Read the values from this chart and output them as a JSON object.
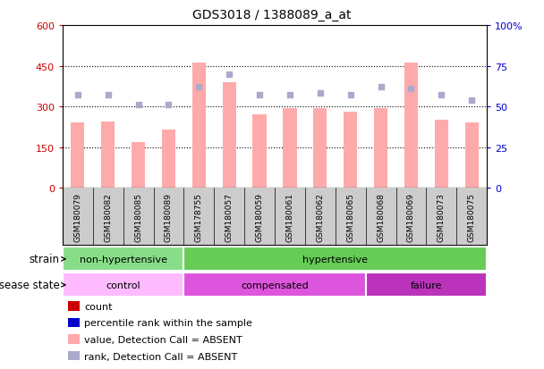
{
  "title": "GDS3018 / 1388089_a_at",
  "samples": [
    "GSM180079",
    "GSM180082",
    "GSM180085",
    "GSM180089",
    "GSM178755",
    "GSM180057",
    "GSM180059",
    "GSM180061",
    "GSM180062",
    "GSM180065",
    "GSM180068",
    "GSM180069",
    "GSM180073",
    "GSM180075"
  ],
  "bar_values": [
    240,
    243,
    170,
    215,
    460,
    390,
    270,
    295,
    295,
    280,
    295,
    460,
    250,
    240
  ],
  "scatter_values": [
    57,
    57,
    51,
    51,
    62,
    70,
    57,
    57,
    58,
    57,
    62,
    61,
    57,
    54
  ],
  "bar_color": "#ffaaaa",
  "scatter_color": "#aaaacc",
  "left_ylim": [
    0,
    600
  ],
  "right_ylim": [
    0,
    100
  ],
  "left_yticks": [
    0,
    150,
    300,
    450,
    600
  ],
  "left_yticklabels": [
    "0",
    "150",
    "300",
    "450",
    "600"
  ],
  "right_yticks": [
    0,
    25,
    50,
    75,
    100
  ],
  "right_yticklabels": [
    "0",
    "25",
    "50",
    "75",
    "100%"
  ],
  "left_tick_color": "#cc0000",
  "right_tick_color": "#0000cc",
  "hline_values": [
    150,
    300,
    450
  ],
  "strain_groups": [
    {
      "label": "non-hypertensive",
      "start": 0,
      "end": 4,
      "color": "#88dd88"
    },
    {
      "label": "hypertensive",
      "start": 4,
      "end": 14,
      "color": "#66cc55"
    }
  ],
  "disease_groups": [
    {
      "label": "control",
      "start": 0,
      "end": 4,
      "color": "#ffbbff"
    },
    {
      "label": "compensated",
      "start": 4,
      "end": 10,
      "color": "#dd55dd"
    },
    {
      "label": "failure",
      "start": 10,
      "end": 14,
      "color": "#bb33bb"
    }
  ],
  "legend_items": [
    {
      "label": "count",
      "color": "#cc0000"
    },
    {
      "label": "percentile rank within the sample",
      "color": "#0000cc"
    },
    {
      "label": "value, Detection Call = ABSENT",
      "color": "#ffaaaa"
    },
    {
      "label": "rank, Detection Call = ABSENT",
      "color": "#aaaacc"
    }
  ]
}
